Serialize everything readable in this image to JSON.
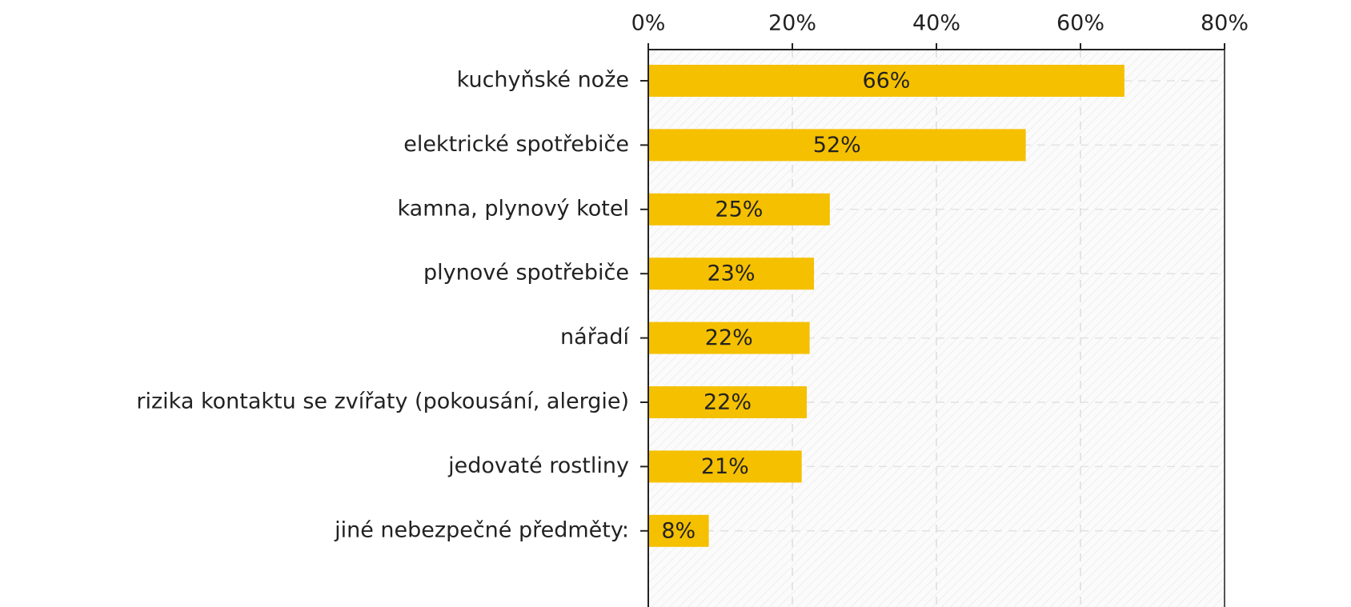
{
  "chart_data": {
    "type": "bar",
    "orientation": "horizontal",
    "categories": [
      "kuchyňské nože",
      "elektrické spotřebiče",
      "kamna, plynový kotel",
      "plynové spotřebiče",
      "nářadí",
      "rizika kontaktu se zvířaty (pokousání, alergie)",
      "jedovaté rostliny",
      "jiné nebezpečné předměty:"
    ],
    "values": [
      66.1,
      52.4,
      25.2,
      23,
      22.4,
      22,
      21.3,
      8.4
    ],
    "value_labels": [
      "66%",
      "52%",
      "25%",
      "23%",
      "22%",
      "22%",
      "21%",
      "8%"
    ],
    "color": "#f5c000",
    "xlim": [
      0,
      80
    ],
    "xticks": [
      {
        "value": 0,
        "label": "0%"
      },
      {
        "value": 20,
        "label": "20%"
      },
      {
        "value": 40,
        "label": "40%"
      },
      {
        "value": 60,
        "label": "60%"
      },
      {
        "value": 80,
        "label": "80%"
      }
    ],
    "grid": true
  }
}
